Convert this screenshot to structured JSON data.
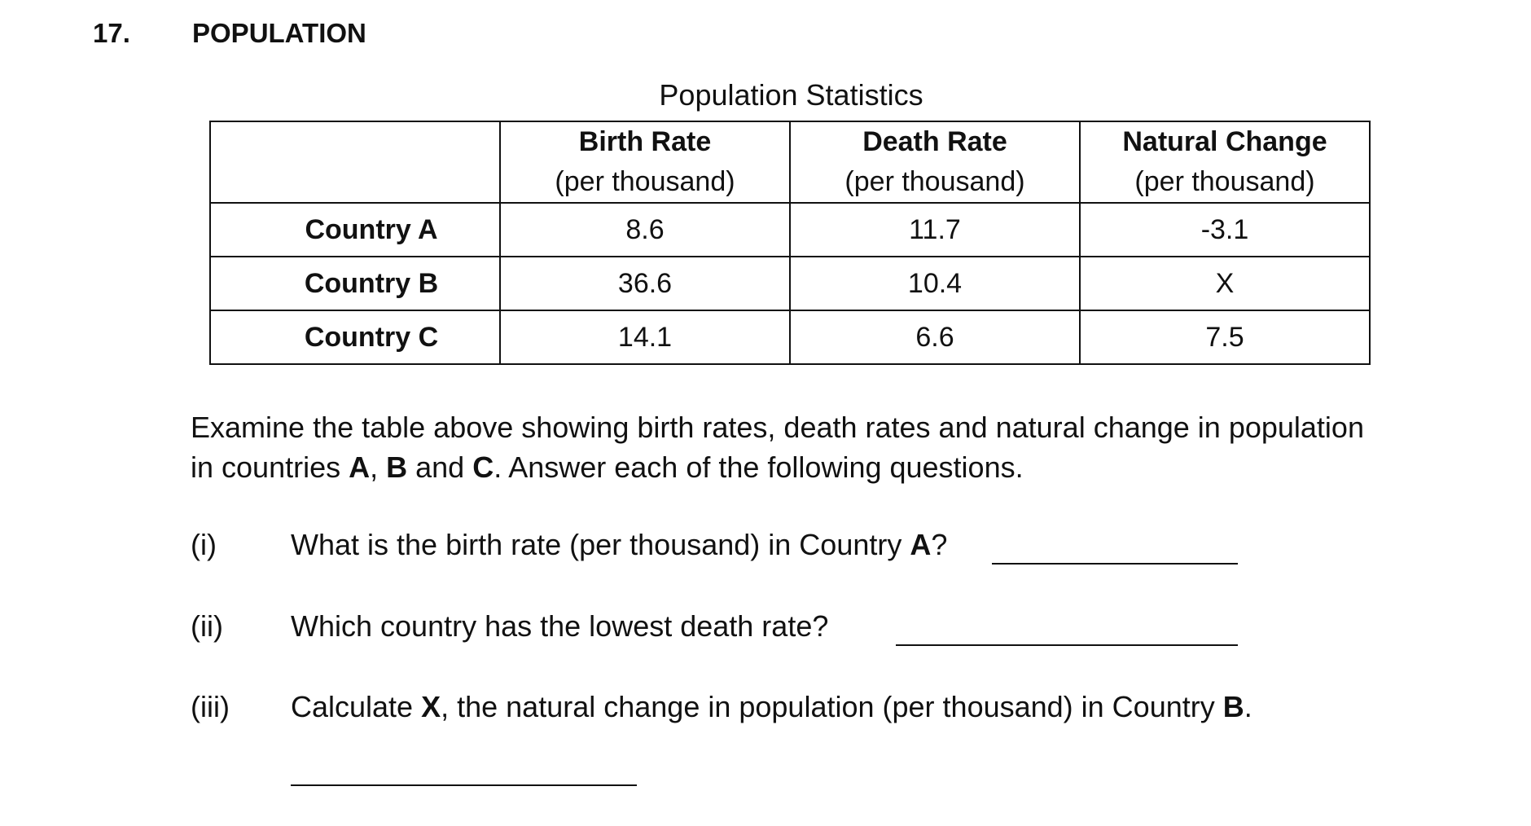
{
  "question": {
    "number": "17.",
    "title": "POPULATION"
  },
  "table": {
    "caption": "Population Statistics",
    "headers": [
      {
        "bold": "",
        "normal": ""
      },
      {
        "bold": "Birth Rate",
        "normal": "(per thousand)"
      },
      {
        "bold": "Death Rate",
        "normal": "(per thousand)"
      },
      {
        "bold": "Natural Change",
        "normal": "(per thousand)"
      }
    ],
    "rows": [
      {
        "label": "Country A",
        "birth": "8.6",
        "death": "11.7",
        "change": "-3.1"
      },
      {
        "label": "Country B",
        "birth": "36.6",
        "death": "10.4",
        "change": "X"
      },
      {
        "label": "Country C",
        "birth": "14.1",
        "death": "6.6",
        "change": "7.5"
      }
    ]
  },
  "instructions": {
    "line1": "Examine the table above showing birth rates, death rates and natural change in population",
    "line2_prefix": "in countries ",
    "a": "A",
    "comma": ", ",
    "b": "B",
    "and": " and ",
    "c": "C",
    "line2_suffix": ".  Answer each of the following questions."
  },
  "questions": [
    {
      "label": "(i)",
      "text": "What is the birth rate (per thousand) in Country ",
      "bold": "A",
      "end": "?"
    },
    {
      "label": "(ii)",
      "text": "Which country has the lowest death rate?"
    },
    {
      "label": "(iii)",
      "pre": "Calculate ",
      "bold1": "X",
      "mid": ", the natural change in population (per thousand) in Country ",
      "bold2": "B",
      "end": "."
    }
  ]
}
